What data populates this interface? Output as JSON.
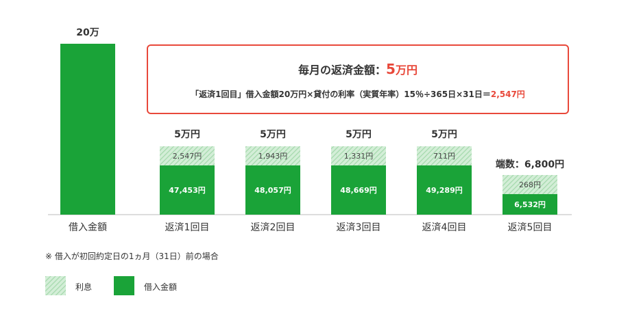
{
  "chart_data": {
    "type": "bar",
    "stacked": true,
    "categories": [
      "借入金額",
      "返済1回目",
      "返済2回目",
      "返済3回目",
      "返済4回目",
      "返済5回目"
    ],
    "series": [
      {
        "name": "借入金額",
        "color": "#1aa338",
        "values": [
          200000,
          47453,
          48057,
          48669,
          49289,
          6532
        ],
        "labels": [
          "",
          "47,453円",
          "48,057円",
          "48,669円",
          "49,289円",
          "6,532円"
        ]
      },
      {
        "name": "利息",
        "color": "#b7e3be",
        "pattern": "diagonal-hatch",
        "values": [
          0,
          2547,
          1943,
          1331,
          711,
          268
        ],
        "labels": [
          "",
          "2,547円",
          "1,943円",
          "1,331円",
          "711円",
          "268円"
        ]
      }
    ],
    "top_labels": [
      "20万",
      "5万円",
      "5万円",
      "5万円",
      "5万円",
      "端数：6,800円"
    ]
  },
  "note": {
    "title_prefix": "毎月の返済金額：",
    "title_value": "5",
    "title_unit": "万円",
    "formula_text": "「返済1回目」借入金額20万円×貸付の利率（実質年率）15％÷365日×31日＝",
    "formula_result": "2,547円"
  },
  "footnote": "※ 借入が初回約定日の1ヵ月（31日）前の場合",
  "legend": [
    {
      "label": "利息",
      "pattern": "diagonal-hatch",
      "color": "#b7e3be"
    },
    {
      "label": "借入金額",
      "color": "#1aa338"
    }
  ]
}
